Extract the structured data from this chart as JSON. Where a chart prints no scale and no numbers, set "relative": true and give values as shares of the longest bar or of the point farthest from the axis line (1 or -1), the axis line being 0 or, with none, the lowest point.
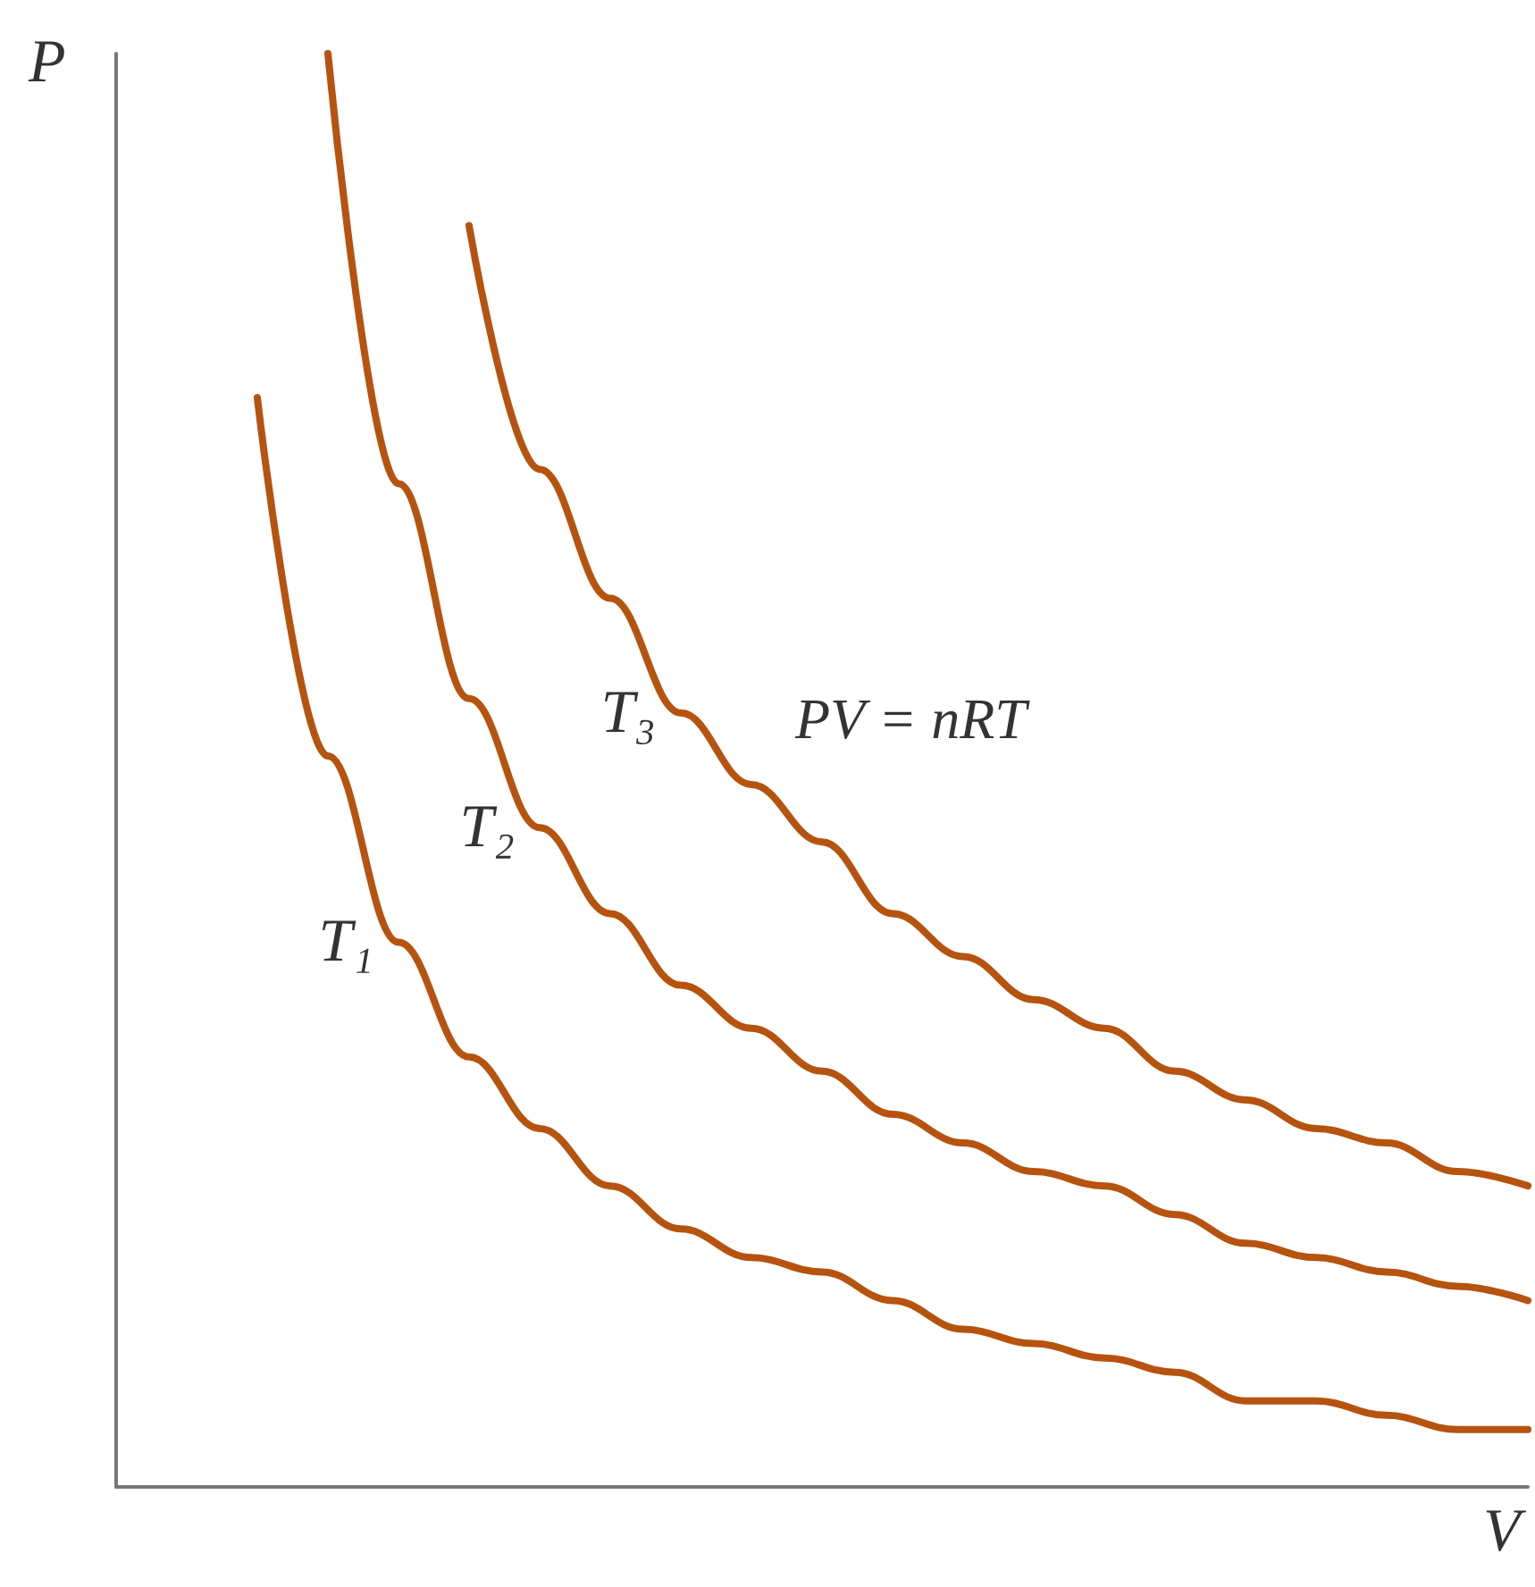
{
  "chart_data": {
    "type": "line",
    "relative": true,
    "xlabel": "V",
    "ylabel": "P",
    "annotations": [
      "PV = nRT"
    ],
    "marker": "none",
    "line_style": "solid",
    "categories": [
      null,
      null,
      null,
      null,
      null,
      null,
      null,
      null,
      null,
      null,
      null,
      null,
      null,
      null,
      null,
      null,
      null,
      null,
      null,
      null,
      null
    ],
    "series": [
      {
        "name": "T₁",
        "color": "#b5530f",
        "values": [
          null,
          null,
          0.76,
          0.51,
          0.38,
          0.3,
          0.25,
          0.21,
          0.18,
          0.16,
          0.15,
          0.13,
          0.11,
          0.1,
          0.09,
          0.08,
          0.06,
          0.06,
          0.05,
          0.04,
          0.04
        ]
      },
      {
        "name": "T₂",
        "color": "#b5530f",
        "values": [
          null,
          null,
          null,
          1.0,
          0.7,
          0.55,
          0.46,
          0.4,
          0.35,
          0.32,
          0.29,
          0.26,
          0.24,
          0.22,
          0.21,
          0.19,
          0.17,
          0.16,
          0.15,
          0.14,
          0.13
        ]
      },
      {
        "name": "T₃",
        "color": "#b5530f",
        "values": [
          null,
          null,
          null,
          null,
          null,
          0.88,
          0.71,
          0.62,
          0.54,
          0.49,
          0.45,
          0.4,
          0.37,
          0.34,
          0.32,
          0.29,
          0.27,
          0.25,
          0.24,
          0.22,
          0.21
        ]
      }
    ]
  }
}
